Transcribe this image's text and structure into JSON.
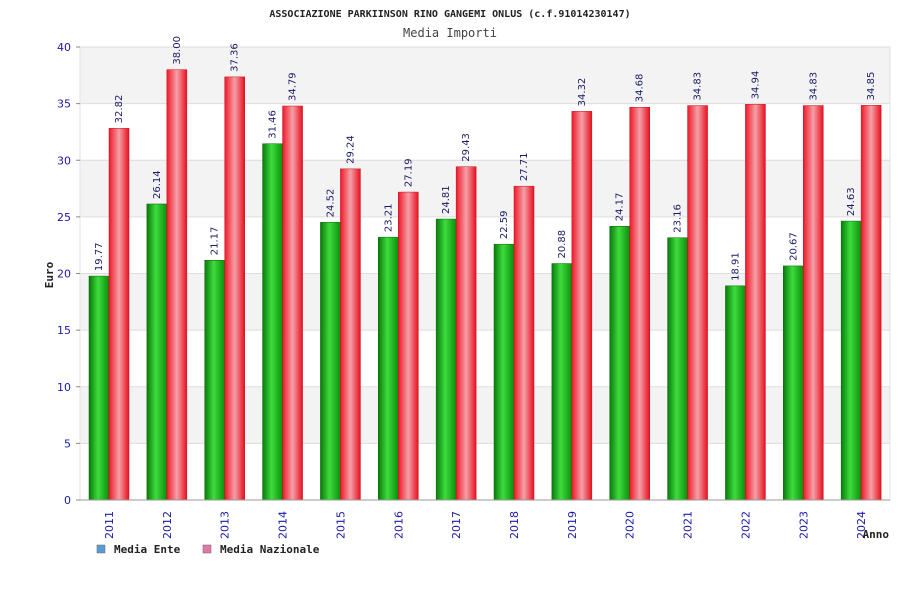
{
  "chart_data": {
    "type": "bar",
    "title": "ASSOCIAZIONE PARKIINSON RINO GANGEMI ONLUS (c.f.91014230147)",
    "subtitle": "Media Importi",
    "xlabel": "Anno",
    "ylabel": "Euro",
    "ylim": [
      0,
      40
    ],
    "yticks": [
      0,
      5,
      10,
      15,
      20,
      25,
      30,
      35,
      40
    ],
    "categories": [
      "2011",
      "2012",
      "2013",
      "2014",
      "2015",
      "2016",
      "2017",
      "2018",
      "2019",
      "2020",
      "2021",
      "2022",
      "2023",
      "2024"
    ],
    "series": [
      {
        "name": "Media Ente",
        "color": "#16b416",
        "legend_color": "#5b9bd5",
        "values": [
          19.77,
          26.14,
          21.17,
          31.46,
          24.52,
          23.21,
          24.81,
          22.59,
          20.88,
          24.17,
          23.16,
          18.91,
          20.67,
          24.63
        ],
        "labels": [
          "19.77",
          "26.14",
          "21.17",
          "31.46",
          "24.52",
          "23.21",
          "24.81",
          "22.59",
          "20.88",
          "24.17",
          "23.16",
          "18.91",
          "20.67",
          "24.63"
        ]
      },
      {
        "name": "Media Nazionale",
        "color": "#e8283a",
        "legend_color": "#e377a8",
        "values": [
          32.82,
          38.0,
          37.36,
          34.79,
          29.24,
          27.19,
          29.43,
          27.71,
          34.32,
          34.68,
          34.83,
          34.94,
          34.83,
          34.85
        ],
        "labels": [
          "32.82",
          "38.00",
          "37.36",
          "34.79",
          "29.24",
          "27.19",
          "29.43",
          "27.71",
          "34.32",
          "34.68",
          "34.83",
          "34.94",
          "34.83",
          "34.85"
        ]
      }
    ],
    "grid": true,
    "legend_position": "bottom-left"
  }
}
